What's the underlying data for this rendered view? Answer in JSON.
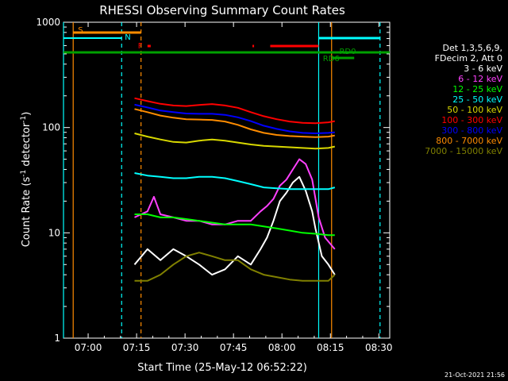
{
  "chart_data": {
    "type": "line",
    "title": "RHESSI Observing Summary Count Rates",
    "xlabel": "Start Time (25-May-12 06:52:22)",
    "ylabel_main": "Count Rate (s",
    "ylabel_sup1": "-1",
    "ylabel_mid": " detector",
    "ylabel_sup2": "-1",
    "ylabel_end": ")",
    "y_scale": "log",
    "ylim": [
      1,
      1000
    ],
    "xlim_minutes": [
      0,
      101
    ],
    "x_ticks": [
      {
        "label": "07:00",
        "minute": 7.63
      },
      {
        "label": "07:15",
        "minute": 22.63
      },
      {
        "label": "07:30",
        "minute": 37.63
      },
      {
        "label": "07:45",
        "minute": 52.63
      },
      {
        "label": "08:00",
        "minute": 67.63
      },
      {
        "label": "08:15",
        "minute": 82.63
      },
      {
        "label": "08:30",
        "minute": 97.63
      }
    ],
    "y_ticks": [
      {
        "label": "1",
        "value": 1
      },
      {
        "label": "10",
        "value": 10
      },
      {
        "label": "100",
        "value": 100
      },
      {
        "label": "1000",
        "value": 1000
      }
    ],
    "legend": {
      "placement": "right",
      "header": [
        "Det 1,3,5,6,9,",
        "FDecim 2, Att 0"
      ],
      "entries": [
        {
          "label": "3 - 6 keV",
          "color": "#ffffff"
        },
        {
          "label": "6 - 12 keV",
          "color": "#ff40ff"
        },
        {
          "label": "12 - 25 keV",
          "color": "#00ff00"
        },
        {
          "label": "25 - 50 keV",
          "color": "#00ffff"
        },
        {
          "label": "50 - 100 keV",
          "color": "#d8d800"
        },
        {
          "label": "100 - 300 keV",
          "color": "#ff0000"
        },
        {
          "label": "300 - 800 keV",
          "color": "#0000ff"
        },
        {
          "label": "800 - 7000 keV",
          "color": "#ff8c00"
        },
        {
          "label": "7000 - 15000 keV",
          "color": "#808000"
        }
      ]
    },
    "series": [
      {
        "name": "3 - 6 keV",
        "color": "#ffffff",
        "x": [
          22,
          26,
          30,
          34,
          38,
          42,
          46,
          50,
          54,
          58,
          61,
          63,
          65,
          67,
          69,
          71,
          73,
          75,
          77,
          78,
          80,
          82,
          84
        ],
        "y": [
          5,
          7,
          5.5,
          7,
          6,
          5,
          4,
          4.5,
          6,
          5,
          7,
          9,
          13,
          20,
          24,
          30,
          34,
          25,
          16,
          11,
          6,
          5,
          4
        ]
      },
      {
        "name": "6 - 12 keV",
        "color": "#ff40ff",
        "x": [
          22,
          26,
          28,
          30,
          34,
          38,
          42,
          46,
          50,
          54,
          58,
          61,
          63,
          65,
          67,
          69,
          71,
          73,
          75,
          77,
          79,
          81,
          84
        ],
        "y": [
          14,
          16,
          22,
          15,
          14,
          13,
          13,
          12,
          12,
          13,
          13,
          16,
          18,
          21,
          28,
          32,
          40,
          50,
          45,
          32,
          14,
          9,
          7
        ]
      },
      {
        "name": "12 - 25 keV",
        "color": "#00ff00",
        "x": [
          22,
          26,
          30,
          34,
          38,
          42,
          46,
          50,
          54,
          58,
          62,
          66,
          70,
          74,
          78,
          82,
          84
        ],
        "y": [
          15,
          15,
          14,
          14,
          13.5,
          13,
          12.5,
          12,
          12,
          12,
          11.5,
          11,
          10.5,
          10,
          9.8,
          9.5,
          9.5
        ]
      },
      {
        "name": "25 - 50 keV",
        "color": "#00ffff",
        "x": [
          22,
          26,
          30,
          34,
          38,
          42,
          46,
          50,
          54,
          58,
          62,
          66,
          70,
          74,
          78,
          82,
          84
        ],
        "y": [
          37,
          35,
          34,
          33,
          33,
          34,
          34,
          33,
          31,
          29,
          27,
          26.5,
          26,
          26,
          26,
          26,
          27
        ]
      },
      {
        "name": "50 - 100 keV",
        "color": "#d8d800",
        "x": [
          22,
          26,
          30,
          34,
          38,
          42,
          46,
          50,
          54,
          58,
          62,
          66,
          70,
          74,
          78,
          82,
          84
        ],
        "y": [
          88,
          82,
          77,
          73,
          72,
          75,
          77,
          75,
          72,
          69,
          67,
          66,
          65,
          64,
          63,
          64,
          66
        ]
      },
      {
        "name": "100 - 300 keV",
        "color": "#ff0000",
        "x": [
          22,
          26,
          30,
          34,
          38,
          42,
          46,
          50,
          54,
          58,
          62,
          66,
          70,
          74,
          78,
          82,
          84
        ],
        "y": [
          190,
          178,
          168,
          162,
          160,
          164,
          167,
          162,
          154,
          140,
          128,
          120,
          114,
          111,
          110,
          112,
          115
        ]
      },
      {
        "name": "300 - 800 keV",
        "color": "#0000ff",
        "x": [
          22,
          26,
          30,
          34,
          38,
          42,
          46,
          50,
          54,
          58,
          62,
          66,
          70,
          74,
          78,
          82,
          84
        ],
        "y": [
          165,
          155,
          145,
          140,
          136,
          135,
          135,
          132,
          125,
          115,
          104,
          97,
          92,
          89,
          88,
          89,
          90
        ]
      },
      {
        "name": "800 - 7000 keV",
        "color": "#ff8c00",
        "x": [
          22,
          26,
          30,
          34,
          38,
          42,
          46,
          50,
          54,
          58,
          62,
          66,
          70,
          74,
          78,
          82,
          84
        ],
        "y": [
          150,
          140,
          130,
          124,
          120,
          119,
          118,
          114,
          106,
          96,
          89,
          85,
          83,
          82,
          81,
          82,
          84
        ]
      },
      {
        "name": "7000 - 15000 keV",
        "color": "#808000",
        "x": [
          22,
          26,
          30,
          34,
          38,
          42,
          46,
          50,
          54,
          58,
          62,
          66,
          70,
          74,
          78,
          82,
          84
        ],
        "y": [
          3.5,
          3.5,
          4,
          5,
          6,
          6.5,
          6,
          5.5,
          5.5,
          4.5,
          4,
          3.8,
          3.6,
          3.5,
          3.5,
          3.5,
          4
        ]
      }
    ],
    "flags": {
      "S": {
        "label": "S",
        "color": "#ff8c00",
        "start_minute": 3,
        "end_minute": 24
      },
      "N": {
        "label": "N",
        "color": "#00ffff",
        "start_minute": 0,
        "end_minute": 18
      },
      "N2": {
        "color": "#00ffff",
        "start_minute": 79,
        "end_minute": 98
      },
      "F": {
        "label": "F",
        "color": "#ff0000",
        "ticks": [
          {
            "start": 26,
            "end": 27
          },
          {
            "start": 58.5,
            "end": 59
          },
          {
            "start": 64,
            "end": 79
          }
        ]
      },
      "RD0": {
        "label": "RD0",
        "color": "#00a000",
        "start_minute": 79,
        "end_minute": 101
      },
      "RD6": {
        "label": "RD6",
        "color": "#00a000",
        "start_minute": 83,
        "end_minute": 90
      },
      "main_green": {
        "color": "#00a000",
        "start_minute": 0,
        "end_minute": 101
      }
    },
    "vertical_markers": [
      {
        "minute": 0,
        "color": "#00ffff",
        "style": "solid"
      },
      {
        "minute": 3,
        "color": "#ff8c00",
        "style": "solid"
      },
      {
        "minute": 18,
        "color": "#00ffff",
        "style": "dashed"
      },
      {
        "minute": 24,
        "color": "#ff8c00",
        "style": "dashed"
      },
      {
        "minute": 79,
        "color": "#00ffff",
        "style": "solid"
      },
      {
        "minute": 83,
        "color": "#ff8c00",
        "style": "solid"
      },
      {
        "minute": 98,
        "color": "#00ffff",
        "style": "dashed"
      }
    ],
    "footer_timestamp": "21-Oct-2021 21:56"
  }
}
